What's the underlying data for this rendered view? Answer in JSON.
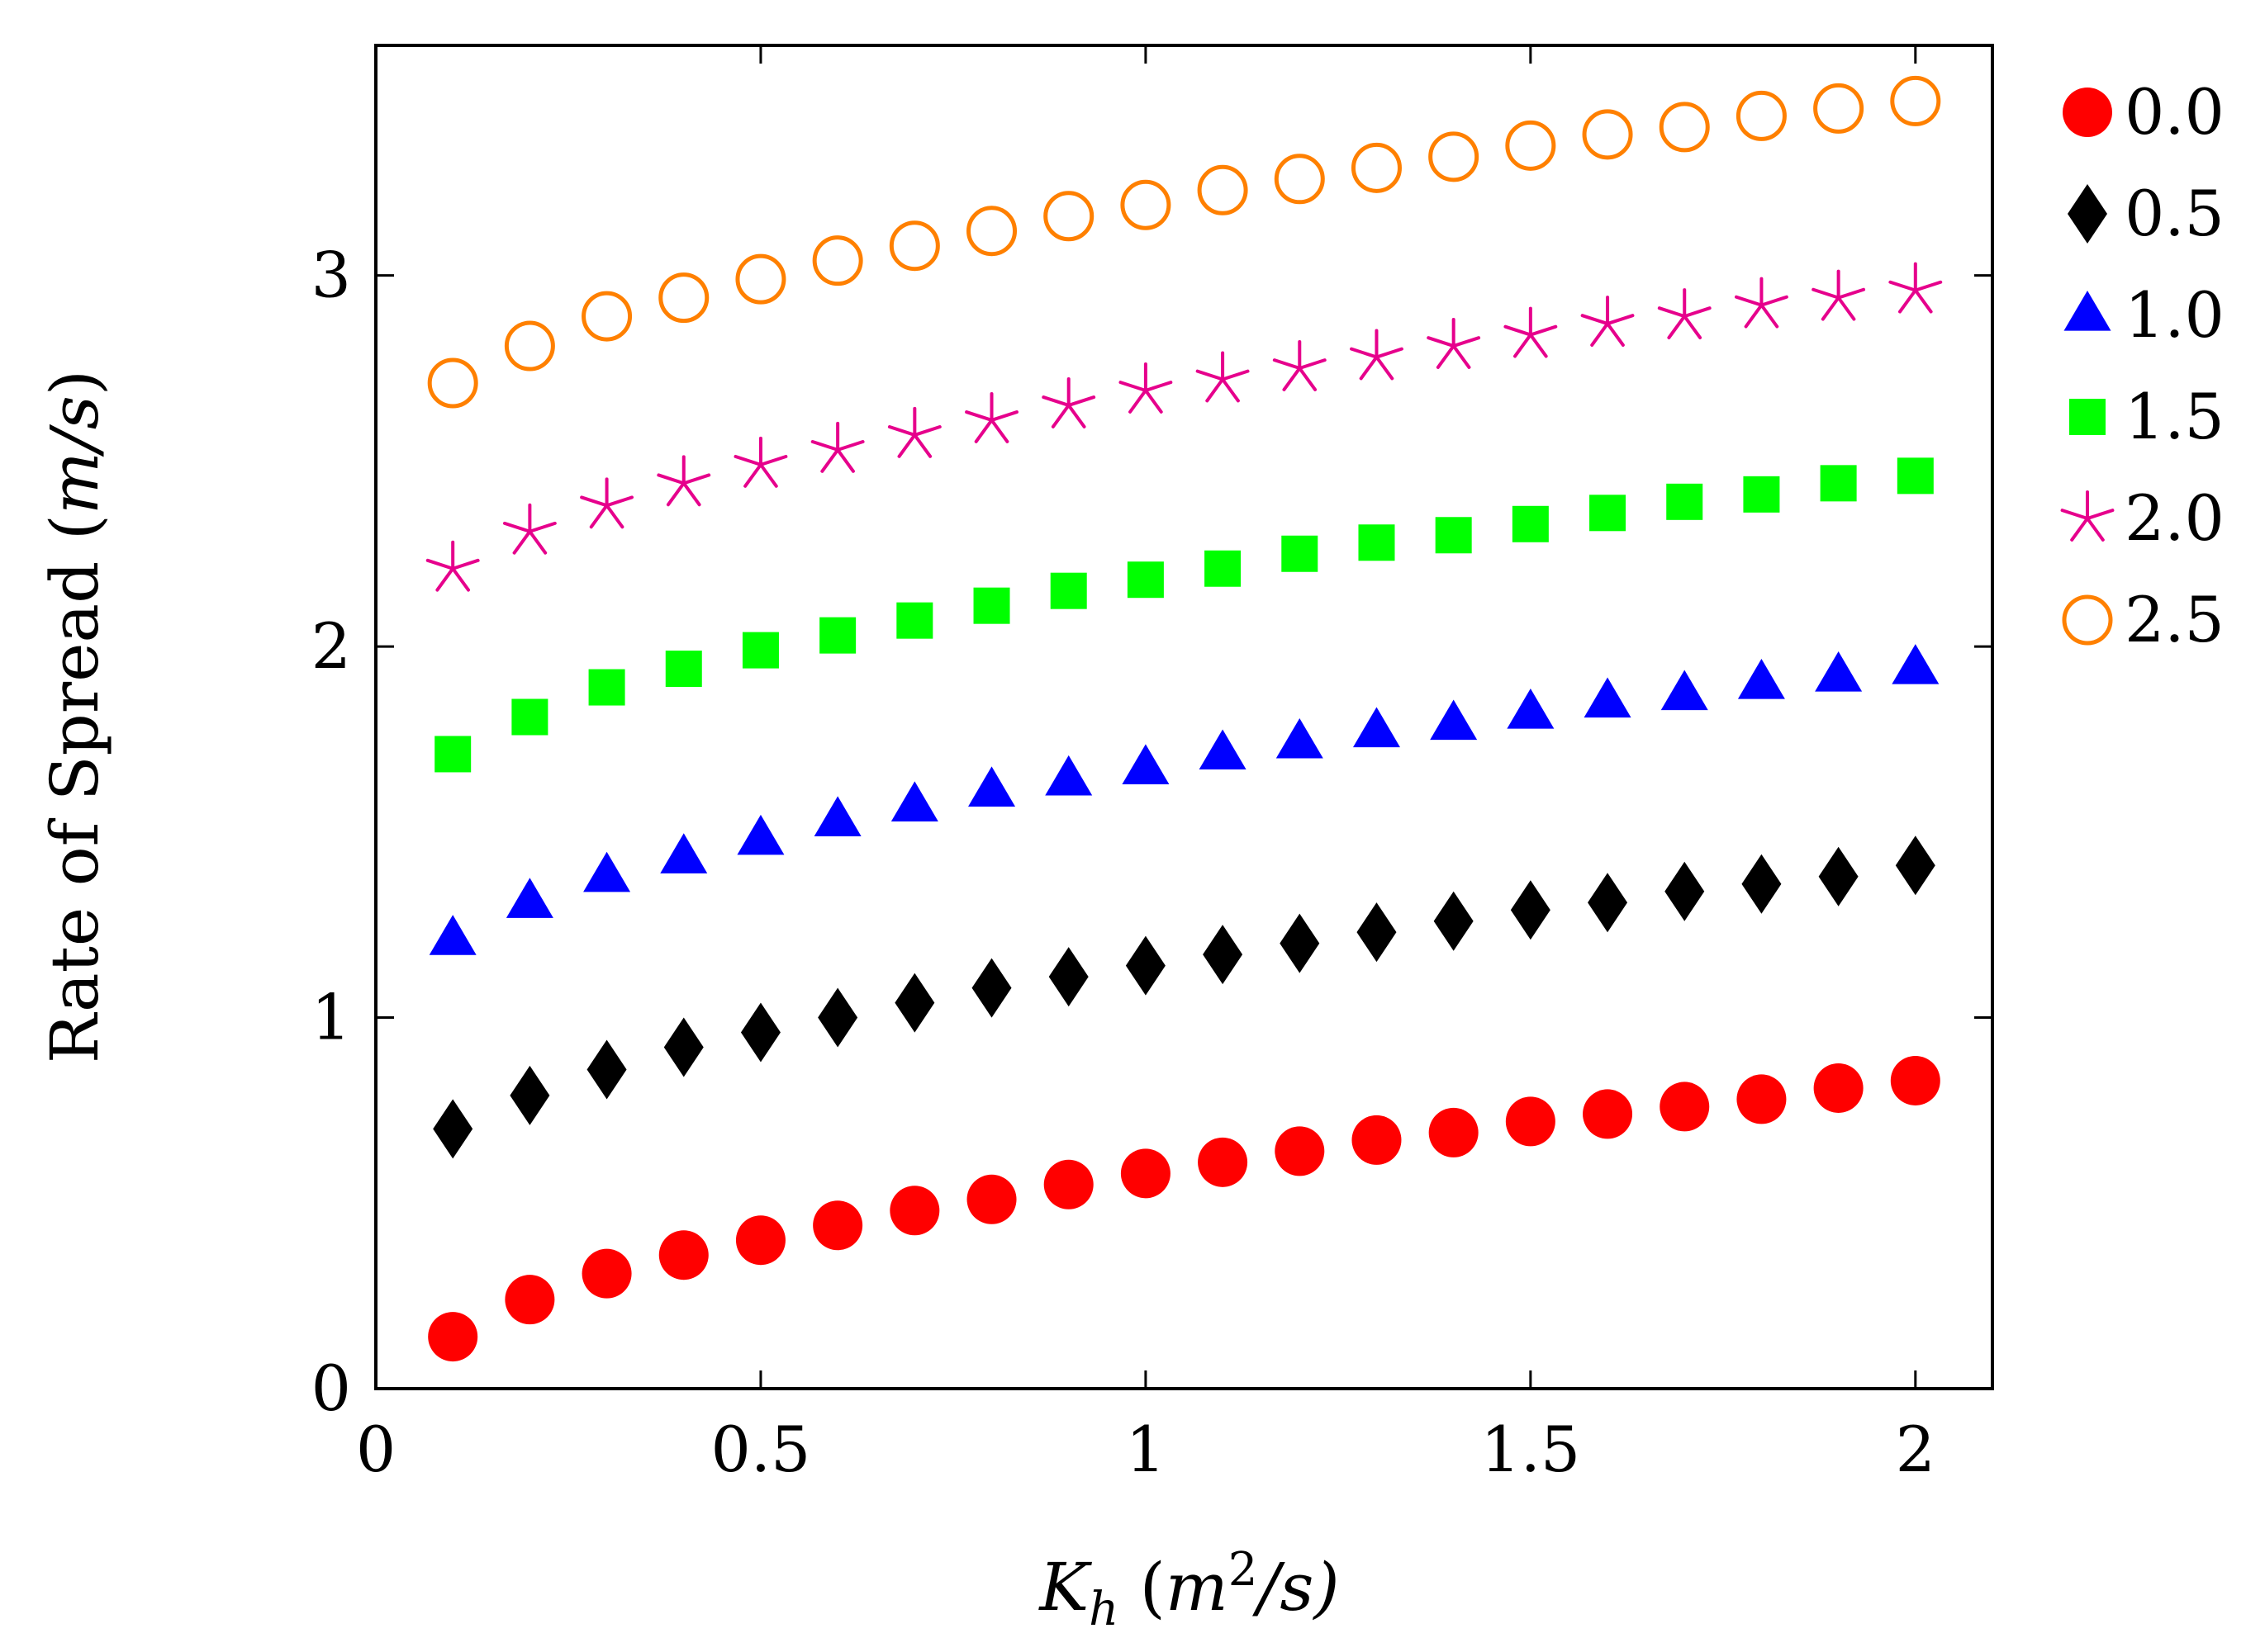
{
  "chart_data": {
    "type": "scatter",
    "title": "",
    "xlabel": {
      "symbol": "K",
      "subscript": "h",
      "unit_open": " (",
      "unit_var": "m",
      "unit_sup": "2",
      "unit_rest": "/s)"
    },
    "ylabel": {
      "text": "Rate of Spread (",
      "unit": "m/s",
      "close": ")"
    },
    "xlim": [
      0,
      2.1
    ],
    "ylim": [
      0,
      3.62
    ],
    "xticks": [
      0,
      0.5,
      1,
      1.5,
      2
    ],
    "xtick_labels": [
      "0",
      "0.5",
      "1",
      "1.5",
      "2"
    ],
    "yticks": [
      0,
      1,
      2,
      3
    ],
    "ytick_labels": [
      "0",
      "1",
      "2",
      "3"
    ],
    "grid": false,
    "legend_position": "outside-right",
    "x": [
      0.1,
      0.2,
      0.3,
      0.4,
      0.5,
      0.6,
      0.7,
      0.8,
      0.9,
      1.0,
      1.1,
      1.2,
      1.3,
      1.4,
      1.5,
      1.6,
      1.7,
      1.8,
      1.9,
      2.0
    ],
    "series": [
      {
        "name": "0.0",
        "marker": "circle-filled",
        "color": "#ff0000",
        "values": [
          0.14,
          0.24,
          0.31,
          0.36,
          0.4,
          0.44,
          0.48,
          0.51,
          0.55,
          0.58,
          0.61,
          0.64,
          0.67,
          0.69,
          0.72,
          0.74,
          0.76,
          0.78,
          0.81,
          0.83
        ]
      },
      {
        "name": "0.5",
        "marker": "diamond-filled",
        "color": "#000000",
        "values": [
          0.7,
          0.79,
          0.86,
          0.92,
          0.96,
          1.0,
          1.04,
          1.08,
          1.11,
          1.14,
          1.17,
          1.2,
          1.23,
          1.26,
          1.29,
          1.31,
          1.34,
          1.36,
          1.38,
          1.41
        ]
      },
      {
        "name": "1.0",
        "marker": "triangle-filled",
        "color": "#0000ff",
        "values": [
          1.21,
          1.31,
          1.38,
          1.43,
          1.48,
          1.53,
          1.57,
          1.61,
          1.64,
          1.67,
          1.71,
          1.74,
          1.77,
          1.79,
          1.82,
          1.85,
          1.87,
          1.9,
          1.92,
          1.94
        ]
      },
      {
        "name": "1.5",
        "marker": "square-filled",
        "color": "#00ff00",
        "values": [
          1.71,
          1.81,
          1.89,
          1.94,
          1.99,
          2.03,
          2.07,
          2.11,
          2.15,
          2.18,
          2.21,
          2.25,
          2.28,
          2.3,
          2.33,
          2.36,
          2.39,
          2.41,
          2.44,
          2.46
        ]
      },
      {
        "name": "2.0",
        "marker": "asterisk",
        "color": "#e6008c",
        "values": [
          2.21,
          2.31,
          2.38,
          2.44,
          2.49,
          2.53,
          2.57,
          2.61,
          2.65,
          2.69,
          2.72,
          2.75,
          2.78,
          2.81,
          2.84,
          2.87,
          2.89,
          2.92,
          2.94,
          2.96
        ]
      },
      {
        "name": "2.5",
        "marker": "circle-open",
        "color": "#ff8000",
        "values": [
          2.71,
          2.81,
          2.89,
          2.94,
          2.99,
          3.04,
          3.08,
          3.12,
          3.16,
          3.19,
          3.23,
          3.26,
          3.29,
          3.32,
          3.35,
          3.38,
          3.4,
          3.43,
          3.45,
          3.47
        ]
      }
    ]
  }
}
